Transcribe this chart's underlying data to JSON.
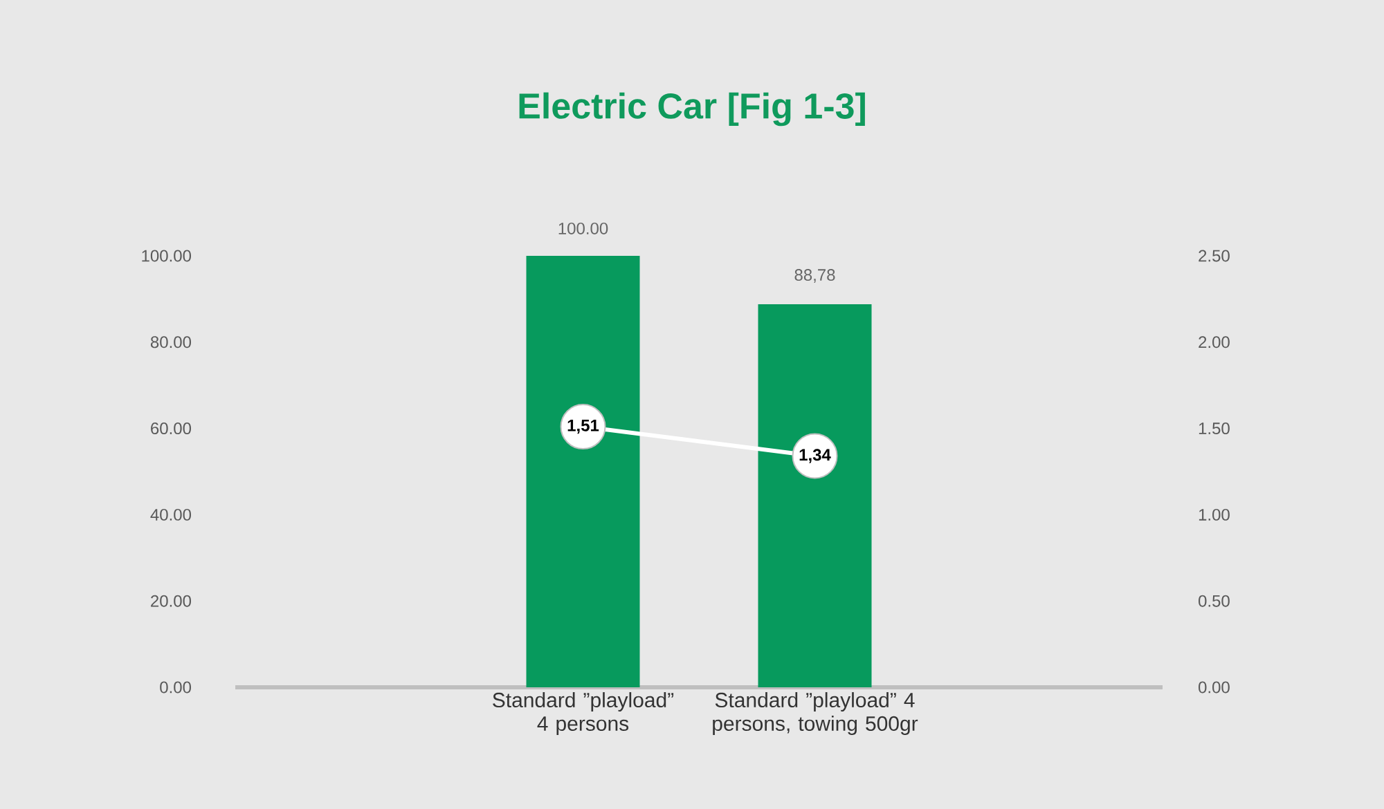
{
  "chart_data": {
    "type": "bar",
    "title": "Electric Car [Fig 1-3]",
    "categories": [
      null,
      "Standard ”playload” 4 persons",
      "Standard ”playload” 4 persons, towing 500gr",
      null
    ],
    "series": [
      {
        "color": "#079a5d",
        "values": [
          null,
          100,
          88.78,
          null
        ],
        "value_labels": [
          null,
          "100.00",
          "88,78",
          null
        ]
      },
      {
        "type": "line",
        "axis": "y2",
        "color": "#ffffff",
        "values": [
          null,
          1.51,
          1.34,
          null
        ],
        "value_labels": [
          null,
          "1,51",
          "1,34",
          null
        ]
      }
    ],
    "marker": "circle",
    "ylim": [
      0,
      100
    ],
    "yticks": [
      {
        "value": 0,
        "label": "0.00"
      },
      {
        "value": 20,
        "label": "20.00"
      },
      {
        "value": 40,
        "label": "40.00"
      },
      {
        "value": 60,
        "label": "60.00"
      },
      {
        "value": 80,
        "label": "80.00"
      },
      {
        "value": 100,
        "label": "100.00"
      }
    ],
    "y2lim": [
      0,
      2.5
    ],
    "y2ticks": [
      {
        "value": 0,
        "label": "0.00"
      },
      {
        "value": 0.5,
        "label": "0.50"
      },
      {
        "value": 1,
        "label": "1.00"
      },
      {
        "value": 1.5,
        "label": "1.50"
      },
      {
        "value": 2,
        "label": "2.00"
      },
      {
        "value": 2.5,
        "label": "2.50"
      }
    ]
  }
}
